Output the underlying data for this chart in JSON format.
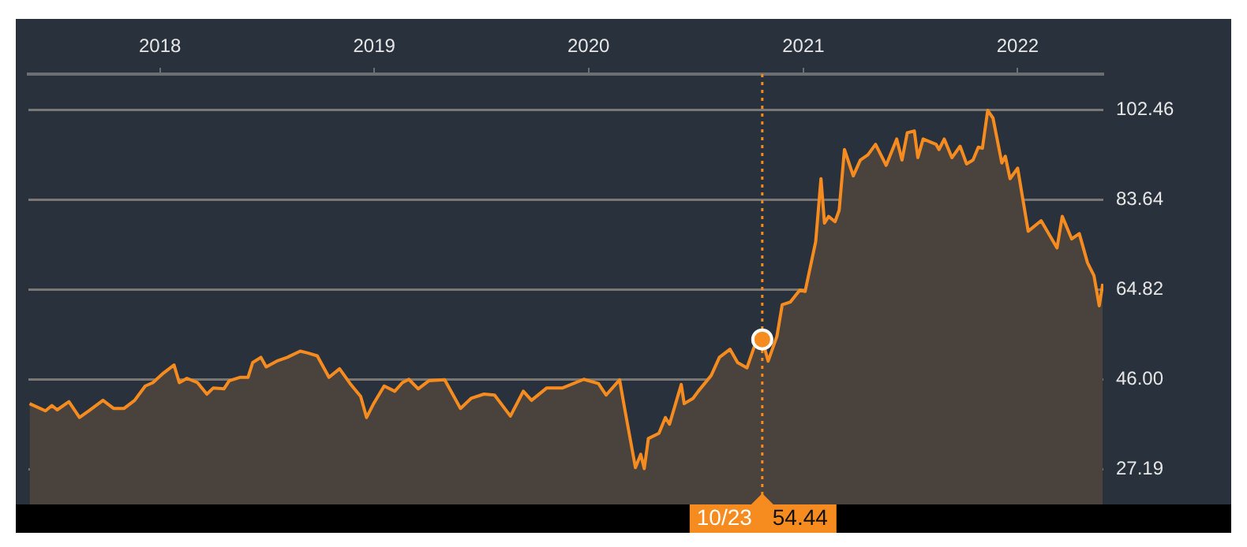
{
  "chart_data": {
    "type": "area",
    "color": "#f68b1f",
    "x": [
      "2017-05-24",
      "2017-06-20",
      "2017-07-01",
      "2017-07-10",
      "2017-07-30",
      "2017-08-17",
      "2017-09-04",
      "2017-09-26",
      "2017-10-14",
      "2017-11-01",
      "2017-11-19",
      "2017-12-07",
      "2017-12-20",
      "2018-01-07",
      "2018-01-25",
      "2018-02-03",
      "2018-02-16",
      "2018-03-06",
      "2018-03-22",
      "2018-04-02",
      "2018-04-20",
      "2018-04-29",
      "2018-05-17",
      "2018-05-31",
      "2018-06-08",
      "2018-06-22",
      "2018-07-01",
      "2018-07-19",
      "2018-08-06",
      "2018-08-28",
      "2018-09-10",
      "2018-09-26",
      "2018-10-16",
      "2018-11-03",
      "2018-11-21",
      "2018-12-09",
      "2018-12-19",
      "2018-12-31",
      "2019-01-18",
      "2019-02-05",
      "2019-02-18",
      "2019-03-01",
      "2019-03-17",
      "2019-04-04",
      "2019-05-01",
      "2019-05-28",
      "2019-06-15",
      "2019-07-07",
      "2019-07-25",
      "2019-08-21",
      "2019-09-12",
      "2019-09-26",
      "2019-10-22",
      "2019-11-18",
      "2019-12-24",
      "2020-01-18",
      "2020-01-31",
      "2020-02-23",
      "2020-03-03",
      "2020-03-21",
      "2020-03-30",
      "2020-04-05",
      "2020-04-12",
      "2020-04-30",
      "2020-05-11",
      "2020-05-18",
      "2020-06-07",
      "2020-06-12",
      "2020-06-27",
      "2020-07-06",
      "2020-07-28",
      "2020-08-11",
      "2020-08-29",
      "2020-09-11",
      "2020-09-27",
      "2020-10-11",
      "2020-10-23",
      "2020-11-02",
      "2020-11-17",
      "2020-11-26",
      "2020-12-10",
      "2020-12-26",
      "2021-01-04",
      "2021-01-22",
      "2021-01-31",
      "2021-02-06",
      "2021-02-13",
      "2021-02-24",
      "2021-03-03",
      "2021-03-12",
      "2021-03-27",
      "2021-04-08",
      "2021-04-21",
      "2021-05-04",
      "2021-05-22",
      "2021-06-09",
      "2021-06-18",
      "2021-06-27",
      "2021-07-09",
      "2021-07-15",
      "2021-07-24",
      "2021-08-15",
      "2021-08-20",
      "2021-08-29",
      "2021-09-11",
      "2021-09-25",
      "2021-10-06",
      "2021-10-17",
      "2021-10-26",
      "2021-11-02",
      "2021-11-11",
      "2021-11-20",
      "2021-12-05",
      "2021-12-11",
      "2021-12-19",
      "2022-01-01",
      "2022-01-19",
      "2022-02-10",
      "2022-03-09",
      "2022-03-18",
      "2022-04-03",
      "2022-04-16",
      "2022-04-30",
      "2022-05-11",
      "2022-05-20",
      "2022-05-26"
    ],
    "values": [
      41.0,
      39.5,
      40.6,
      39.7,
      41.4,
      38.1,
      39.7,
      41.7,
      40.0,
      40.0,
      41.7,
      44.7,
      45.4,
      47.4,
      49.1,
      45.4,
      46.3,
      45.4,
      43.0,
      44.3,
      44.1,
      45.8,
      46.5,
      46.5,
      49.6,
      50.7,
      48.7,
      49.9,
      50.7,
      52.0,
      51.6,
      51.0,
      46.5,
      48.3,
      45.2,
      42.5,
      38.1,
      41.0,
      44.7,
      43.6,
      45.4,
      46.1,
      44.1,
      45.8,
      46.0,
      40.0,
      42.1,
      43.0,
      42.8,
      38.4,
      43.6,
      41.7,
      44.3,
      44.3,
      46.1,
      45.2,
      42.8,
      46.0,
      39.7,
      27.6,
      30.4,
      27.4,
      33.7,
      34.8,
      38.1,
      36.7,
      45.0,
      41.0,
      42.1,
      43.6,
      46.9,
      50.7,
      52.4,
      49.6,
      48.5,
      53.5,
      54.44,
      49.9,
      55.1,
      61.7,
      62.3,
      64.8,
      64.5,
      74.9,
      88.1,
      78.8,
      80.2,
      79.1,
      81.5,
      94.2,
      88.7,
      92.0,
      93.1,
      95.3,
      90.9,
      96.4,
      92.0,
      97.7,
      98.1,
      92.5,
      96.4,
      95.3,
      94.2,
      96.4,
      92.5,
      94.9,
      91.2,
      92.0,
      94.7,
      94.5,
      102.4,
      100.8,
      91.4,
      92.8,
      88.1,
      90.3,
      77.1,
      79.3,
      73.6,
      80.2,
      75.5,
      76.6,
      70.5,
      67.8,
      61.5,
      66.1
    ],
    "xlim": [
      "2017-05-22",
      "2022-05-27"
    ],
    "xticks": [
      {
        "value": "2018-01-01",
        "label": "2018"
      },
      {
        "value": "2019-01-01",
        "label": "2019"
      },
      {
        "value": "2020-01-01",
        "label": "2020"
      },
      {
        "value": "2021-01-01",
        "label": "2021"
      },
      {
        "value": "2022-01-01",
        "label": "2022"
      }
    ],
    "ylim": [
      19.9,
      110.0
    ],
    "yticks": [
      {
        "value": 27.19,
        "label": "27.19"
      },
      {
        "value": 46.0,
        "label": "46.00"
      },
      {
        "value": 64.82,
        "label": "64.82"
      },
      {
        "value": 83.64,
        "label": "83.64"
      },
      {
        "value": 102.46,
        "label": "102.46"
      }
    ],
    "grid": "y",
    "legend": false,
    "marker": "none",
    "line_style": "solid",
    "ref_lines": [
      {
        "axis": "x",
        "value": "2020-10-23",
        "label": "10/23",
        "line_style": "dotted",
        "color": "#f68b1f"
      }
    ],
    "annotations": [
      "54.44"
    ]
  }
}
